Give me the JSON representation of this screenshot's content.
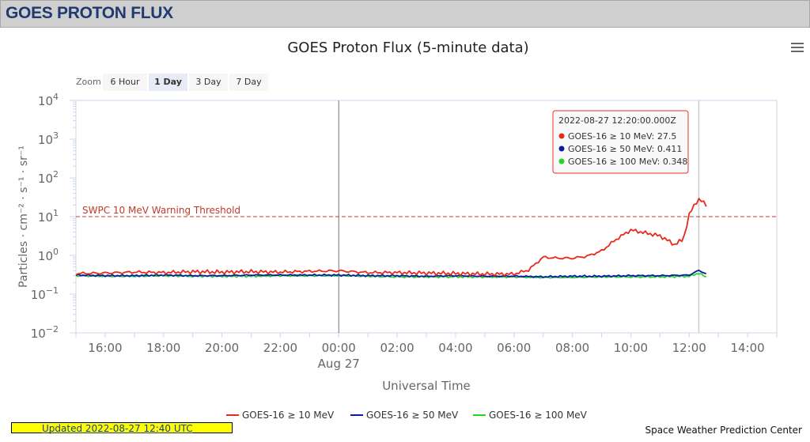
{
  "header": {
    "title": "GOES PROTON FLUX"
  },
  "zoom": {
    "label": "Zoom",
    "options": [
      "6 Hour",
      "1 Day",
      "3 Day",
      "7 Day"
    ],
    "selected": "1 Day"
  },
  "footer": {
    "updated": "Updated 2022-08-27 12:40 UTC",
    "credit": "Space Weather Prediction Center"
  },
  "tooltip": {
    "time": "2022-08-27 12:20:00.000Z",
    "rows": [
      {
        "label": "GOES-16 ≥ 10 MeV",
        "value": "27.5",
        "color": "#e8291c"
      },
      {
        "label": "GOES-16 ≥ 50 MeV",
        "value": "0.411",
        "color": "#0a1aa8"
      },
      {
        "label": "GOES-16 ≥ 100 MeV",
        "value": "0.348",
        "color": "#22d628"
      }
    ]
  },
  "chart_data": {
    "type": "line",
    "title": "GOES Proton Flux (5-minute data)",
    "xlabel": "Universal Time",
    "ylabel": "Particles · cm⁻² · s⁻¹ · sr⁻¹",
    "yscale": "log",
    "ylim": [
      0.01,
      10000
    ],
    "xlim": [
      -9,
      15
    ],
    "x_units": "hours relative to 2022-08-27 00:00 UTC",
    "x_ticks": [
      {
        "value": -8,
        "label": "16:00"
      },
      {
        "value": -6,
        "label": "18:00"
      },
      {
        "value": -4,
        "label": "20:00"
      },
      {
        "value": -2,
        "label": "22:00"
      },
      {
        "value": 0,
        "label": "00:00"
      },
      {
        "value": 2,
        "label": "02:00"
      },
      {
        "value": 4,
        "label": "04:00"
      },
      {
        "value": 6,
        "label": "06:00"
      },
      {
        "value": 8,
        "label": "08:00"
      },
      {
        "value": 10,
        "label": "10:00"
      },
      {
        "value": 12,
        "label": "12:00"
      },
      {
        "value": 14,
        "label": "14:00"
      }
    ],
    "date_label": {
      "value": 0,
      "label": "Aug 27"
    },
    "y_ticks": [
      {
        "value": 0.01,
        "base": "10",
        "exp": "−2"
      },
      {
        "value": 0.1,
        "base": "10",
        "exp": "−1"
      },
      {
        "value": 1,
        "base": "10",
        "exp": "0"
      },
      {
        "value": 10,
        "base": "10",
        "exp": "1"
      },
      {
        "value": 100,
        "base": "10",
        "exp": "2"
      },
      {
        "value": 1000,
        "base": "10",
        "exp": "3"
      },
      {
        "value": 10000,
        "base": "10",
        "exp": "4"
      }
    ],
    "threshold": {
      "value": 10,
      "label": "SWPC 10 MeV Warning Threshold",
      "color": "#c0392b"
    },
    "day_marker": 0,
    "cursor_x": 12.33,
    "grid": false,
    "legend_position": "bottom-center",
    "series": [
      {
        "name": "GOES-16 ≥ 10 MeV",
        "color": "#e8291c",
        "x": [
          -9,
          -8,
          -7,
          -6,
          -5,
          -4,
          -3,
          -2,
          -1,
          0,
          1,
          2,
          3,
          4,
          5,
          6,
          6.5,
          7,
          7.5,
          8,
          8.5,
          9,
          9.5,
          10,
          10.5,
          11,
          11.5,
          11.8,
          12,
          12.2,
          12.33,
          12.5,
          12.6
        ],
        "y": [
          0.34,
          0.35,
          0.37,
          0.36,
          0.38,
          0.37,
          0.38,
          0.37,
          0.39,
          0.4,
          0.36,
          0.36,
          0.35,
          0.34,
          0.33,
          0.33,
          0.42,
          0.9,
          0.85,
          0.85,
          0.95,
          1.3,
          2.6,
          4.5,
          3.8,
          3.2,
          1.9,
          2.6,
          11,
          22,
          27.5,
          23,
          20
        ]
      },
      {
        "name": "GOES-16 ≥ 50 MeV",
        "color": "#0a1aa8",
        "x": [
          -9,
          -8,
          -7,
          -6,
          -5,
          -4,
          -3,
          -2,
          -1,
          0,
          1,
          2,
          3,
          4,
          5,
          6,
          7,
          8,
          9,
          10,
          11,
          12,
          12.33,
          12.6
        ],
        "y": [
          0.31,
          0.3,
          0.3,
          0.31,
          0.3,
          0.3,
          0.31,
          0.31,
          0.31,
          0.31,
          0.3,
          0.3,
          0.29,
          0.3,
          0.29,
          0.29,
          0.28,
          0.29,
          0.29,
          0.3,
          0.3,
          0.31,
          0.411,
          0.33
        ]
      },
      {
        "name": "GOES-16 ≥ 100 MeV",
        "color": "#22d628",
        "x": [
          -9,
          -8,
          -7,
          -6,
          -5,
          -4,
          -3,
          -2,
          -1,
          0,
          1,
          2,
          3,
          4,
          5,
          6,
          7,
          8,
          9,
          10,
          11,
          12,
          12.33,
          12.6
        ],
        "y": [
          0.3,
          0.29,
          0.29,
          0.3,
          0.29,
          0.29,
          0.29,
          0.3,
          0.3,
          0.3,
          0.29,
          0.28,
          0.28,
          0.28,
          0.28,
          0.28,
          0.27,
          0.27,
          0.28,
          0.28,
          0.28,
          0.29,
          0.348,
          0.27
        ]
      }
    ]
  }
}
